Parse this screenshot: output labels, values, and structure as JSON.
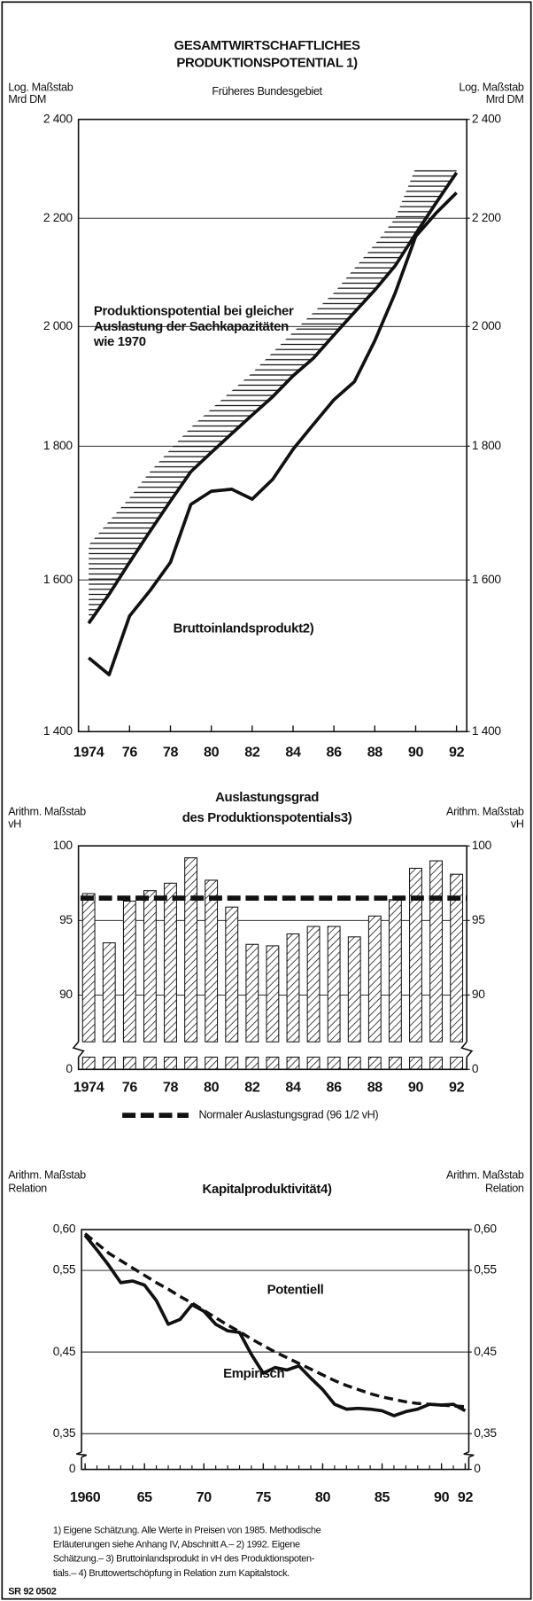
{
  "chart_data": [
    {
      "type": "line",
      "title": [
        "GESAMTWIRTSCHAFTLICHES",
        "PRODUKTIONSPOTENTIAL 1)"
      ],
      "subtitle": "Früheres Bundesgebiet",
      "y_label": [
        "Log. Maßstab",
        "Mrd DM"
      ],
      "y2_label": [
        "Log. Maßstab",
        "Mrd DM"
      ],
      "log_scale": true,
      "grid": true,
      "x": [
        1974,
        1975,
        1976,
        1977,
        1978,
        1979,
        1980,
        1981,
        1982,
        1983,
        1984,
        1985,
        1986,
        1987,
        1988,
        1989,
        1990,
        1991,
        1992
      ],
      "xlim": [
        1973.5,
        1992.5
      ],
      "xticks": [
        1974,
        {
          "value": 1976,
          "label": "76"
        },
        {
          "value": 1978,
          "label": "78"
        },
        {
          "value": 1980,
          "label": "80"
        },
        {
          "value": 1982,
          "label": "82"
        },
        {
          "value": 1984,
          "label": "84"
        },
        {
          "value": 1986,
          "label": "86"
        },
        {
          "value": 1988,
          "label": "88"
        },
        {
          "value": 1990,
          "label": "90"
        },
        {
          "value": 1992,
          "label": "92"
        }
      ],
      "ylim": [
        1400,
        2400
      ],
      "yticks": [
        {
          "value": 1400,
          "label": "1 400"
        },
        {
          "value": 1600,
          "label": "1 600"
        },
        {
          "value": 1800,
          "label": "1 800"
        },
        {
          "value": 2000,
          "label": "2 000"
        },
        {
          "value": 2200,
          "label": "2 200"
        },
        {
          "value": 2400,
          "label": "2 400"
        }
      ],
      "y2lim": [
        1400,
        2400
      ],
      "y2ticks": [
        {
          "value": 1400,
          "label": "1 400"
        },
        {
          "value": 1600,
          "label": "1 600"
        },
        {
          "value": 1800,
          "label": "1 800"
        },
        {
          "value": 2000,
          "label": "2 000"
        },
        {
          "value": 2200,
          "label": "2 200"
        },
        {
          "value": 2400,
          "label": "2 400"
        }
      ],
      "series": [
        {
          "name": "Produktionspotential bei gleicher Auslastung der Sachkapazitäten wie 1970",
          "color": "#111111",
          "values": [
            1540,
            1580,
            1625,
            1670,
            1715,
            1760,
            1790,
            1820,
            1850,
            1880,
            1915,
            1945,
            1985,
            2025,
            2065,
            2110,
            2170,
            2230,
            2290
          ]
        },
        {
          "name": "Bruttoinlandsprodukt2)",
          "color": "#111111",
          "values": [
            1494,
            1472,
            1550,
            1585,
            1625,
            1710,
            1730,
            1733,
            1718,
            1748,
            1795,
            1835,
            1875,
            1905,
            1975,
            2060,
            2165,
            2210,
            2250
          ]
        }
      ],
      "band": {
        "values": [
          1650,
          1685,
          1720,
          1760,
          1795,
          1830,
          1860,
          1890,
          1920,
          1955,
          1990,
          2025,
          2060,
          2105,
          2150,
          2200,
          2300,
          2300,
          2300
        ]
      }
    },
    {
      "type": "bar",
      "title": [
        "Auslastungsgrad",
        "des Produktionspotentials3)"
      ],
      "y_label": [
        "Arithm. Maßstab",
        "vH"
      ],
      "y2_label": [
        "Arithm. Maßstab",
        "vH"
      ],
      "grid": true,
      "axis_break": true,
      "x": [
        1974,
        1975,
        1976,
        1977,
        1978,
        1979,
        1980,
        1981,
        1982,
        1983,
        1984,
        1985,
        1986,
        1987,
        1988,
        1989,
        1990,
        1991,
        1992
      ],
      "xlim": [
        1973.5,
        1992.5
      ],
      "xticks": [
        1974,
        {
          "value": 1976,
          "label": "76"
        },
        {
          "value": 1978,
          "label": "78"
        },
        {
          "value": 1980,
          "label": "80"
        },
        {
          "value": 1982,
          "label": "82"
        },
        {
          "value": 1984,
          "label": "84"
        },
        {
          "value": 1986,
          "label": "86"
        },
        {
          "value": 1988,
          "label": "88"
        },
        {
          "value": 1990,
          "label": "90"
        },
        {
          "value": 1992,
          "label": "92"
        }
      ],
      "values": [
        96.8,
        93.5,
        96.3,
        97.0,
        97.5,
        99.2,
        97.7,
        95.9,
        93.4,
        93.3,
        94.1,
        94.6,
        94.6,
        93.9,
        95.3,
        96.4,
        98.5,
        99.0,
        98.1
      ],
      "color": "#111111",
      "ylim": [
        87,
        100
      ],
      "yticks": [
        0,
        90,
        95,
        100
      ],
      "y2lim": [
        87,
        100
      ],
      "y2ticks": [
        0,
        90,
        95,
        100
      ],
      "reference": {
        "value": 96.5,
        "label": "Normaler Auslastungsgrad (96 1/2 vH)"
      }
    },
    {
      "type": "line",
      "title": [
        "Kapitalproduktivität4)"
      ],
      "y_label": [
        "Arithm. Maßstab",
        "Relation"
      ],
      "y2_label": [
        "Arithm. Maßstab",
        "Relation"
      ],
      "grid": true,
      "axis_break": true,
      "x": [
        1960,
        1961,
        1962,
        1963,
        1964,
        1965,
        1966,
        1967,
        1968,
        1969,
        1970,
        1971,
        1972,
        1973,
        1974,
        1975,
        1976,
        1977,
        1978,
        1979,
        1980,
        1981,
        1982,
        1983,
        1984,
        1985,
        1986,
        1987,
        1988,
        1989,
        1990,
        1991,
        1992
      ],
      "xlim": [
        1959.7,
        1992.3
      ],
      "xticks": [
        1960,
        {
          "value": 1965,
          "label": "65"
        },
        {
          "value": 1970,
          "label": "70"
        },
        {
          "value": 1975,
          "label": "75"
        },
        {
          "value": 1980,
          "label": "80"
        },
        {
          "value": 1985,
          "label": "85"
        },
        {
          "value": 1990,
          "label": "90"
        },
        {
          "value": 1992,
          "label": "92"
        }
      ],
      "xticks_minor": [
        1960,
        1961,
        1962,
        1963,
        1964,
        1965,
        1966,
        1967,
        1968,
        1969,
        1970,
        1971,
        1972,
        1973,
        1974,
        1975,
        1976,
        1977,
        1978,
        1979,
        1980,
        1981,
        1982,
        1983,
        1984,
        1985,
        1986,
        1987,
        1988,
        1989,
        1990,
        1991,
        1992
      ],
      "ylim": [
        0.33,
        0.6
      ],
      "yticks": [
        0,
        {
          "value": 0.35,
          "label": "0,35"
        },
        {
          "value": 0.45,
          "label": "0,45"
        },
        {
          "value": 0.55,
          "label": "0,55"
        },
        {
          "value": 0.6,
          "label": "0,60"
        }
      ],
      "y2lim": [
        0.33,
        0.6
      ],
      "y2ticks": [
        0,
        {
          "value": 0.35,
          "label": "0,35"
        },
        {
          "value": 0.45,
          "label": "0,45"
        },
        {
          "value": 0.55,
          "label": "0,55"
        },
        {
          "value": 0.6,
          "label": "0,60"
        }
      ],
      "series": [
        {
          "name": "Potentiell",
          "color": "#111111",
          "dashed": true,
          "values": [
            0.595,
            0.583,
            0.571,
            0.562,
            0.553,
            0.544,
            0.535,
            0.527,
            0.518,
            0.51,
            0.501,
            0.492,
            0.483,
            0.475,
            0.466,
            0.458,
            0.45,
            0.443,
            0.436,
            0.429,
            0.422,
            0.415,
            0.409,
            0.404,
            0.399,
            0.395,
            0.392,
            0.389,
            0.387,
            0.386,
            0.385,
            0.384,
            0.383
          ]
        },
        {
          "name": "Empirisch",
          "color": "#111111",
          "values": [
            0.593,
            0.575,
            0.556,
            0.535,
            0.537,
            0.532,
            0.513,
            0.484,
            0.49,
            0.508,
            0.5,
            0.484,
            0.476,
            0.474,
            0.447,
            0.424,
            0.431,
            0.428,
            0.433,
            0.418,
            0.404,
            0.386,
            0.38,
            0.381,
            0.38,
            0.378,
            0.372,
            0.377,
            0.38,
            0.386,
            0.385,
            0.386,
            0.378
          ]
        }
      ]
    }
  ],
  "footnotes": [
    "1) Eigene Schätzung. Alle Werte in Preisen von 1985. Methodische",
    "Erläuterungen siehe Anhang IV, Abschnitt A.– 2) 1992. Eigene",
    "Schätzung.– 3) Bruttoinlandsprodukt in vH des Produktionspoten-",
    "tials.– 4) Bruttowertschöpfung in Relation zum Kapitalstock."
  ],
  "code": "SR 92 0502"
}
